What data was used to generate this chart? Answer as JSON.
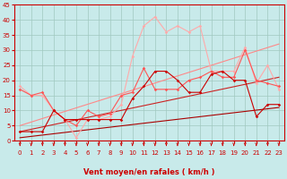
{
  "xlabel": "Vent moyen/en rafales ( km/h )",
  "xlim": [
    -0.5,
    23.5
  ],
  "ylim": [
    0,
    45
  ],
  "yticks": [
    0,
    5,
    10,
    15,
    20,
    25,
    30,
    35,
    40,
    45
  ],
  "xticks": [
    0,
    1,
    2,
    3,
    4,
    5,
    6,
    7,
    8,
    9,
    10,
    11,
    12,
    13,
    14,
    15,
    16,
    17,
    18,
    19,
    20,
    21,
    22,
    23
  ],
  "background_color": "#c8eaea",
  "grid_color": "#a0c8c0",
  "line_pink_x": [
    0,
    1,
    2,
    3,
    4,
    5,
    6,
    7,
    8,
    9,
    10,
    11,
    12,
    13,
    14,
    15,
    16,
    17,
    18,
    19,
    20,
    21,
    22,
    23
  ],
  "line_pink_y": [
    18,
    15,
    15,
    10,
    7,
    1,
    7,
    7,
    8,
    12,
    28,
    38,
    41,
    36,
    38,
    36,
    38,
    23,
    23,
    23,
    31,
    19,
    25,
    17
  ],
  "line_pink_color": "#ffaaaa",
  "line_red2_x": [
    0,
    1,
    2,
    3,
    4,
    5,
    6,
    7,
    8,
    9,
    10,
    11,
    12,
    13,
    14,
    15,
    16,
    17,
    18,
    19,
    20,
    21,
    22,
    23
  ],
  "line_red2_y": [
    17,
    15,
    16,
    10,
    7,
    5,
    10,
    8,
    9,
    15,
    16,
    24,
    17,
    17,
    17,
    20,
    21,
    23,
    21,
    21,
    30,
    20,
    19,
    18
  ],
  "line_red2_color": "#ff5555",
  "line_dark_x": [
    0,
    1,
    2,
    3,
    4,
    5,
    6,
    7,
    8,
    9,
    10,
    11,
    12,
    13,
    14,
    15,
    16,
    17,
    18,
    19,
    20,
    21,
    22,
    23
  ],
  "line_dark_y": [
    3,
    3,
    3,
    10,
    7,
    7,
    7,
    7,
    7,
    7,
    14,
    18,
    23,
    23,
    20,
    16,
    16,
    22,
    23,
    20,
    20,
    8,
    12,
    12
  ],
  "line_dark_color": "#cc0000",
  "trend1_x": [
    0,
    23
  ],
  "trend1_y": [
    5,
    32
  ],
  "trend1_color": "#ff8888",
  "trend2_x": [
    0,
    23
  ],
  "trend2_y": [
    3,
    21
  ],
  "trend2_color": "#cc2222",
  "trend3_x": [
    0,
    23
  ],
  "trend3_y": [
    1,
    11
  ],
  "trend3_color": "#aa0000",
  "arrow_color": "#cc0000",
  "tick_color": "#cc0000",
  "xlabel_color": "#cc0000",
  "tick_fontsize": 5,
  "xlabel_fontsize": 6
}
